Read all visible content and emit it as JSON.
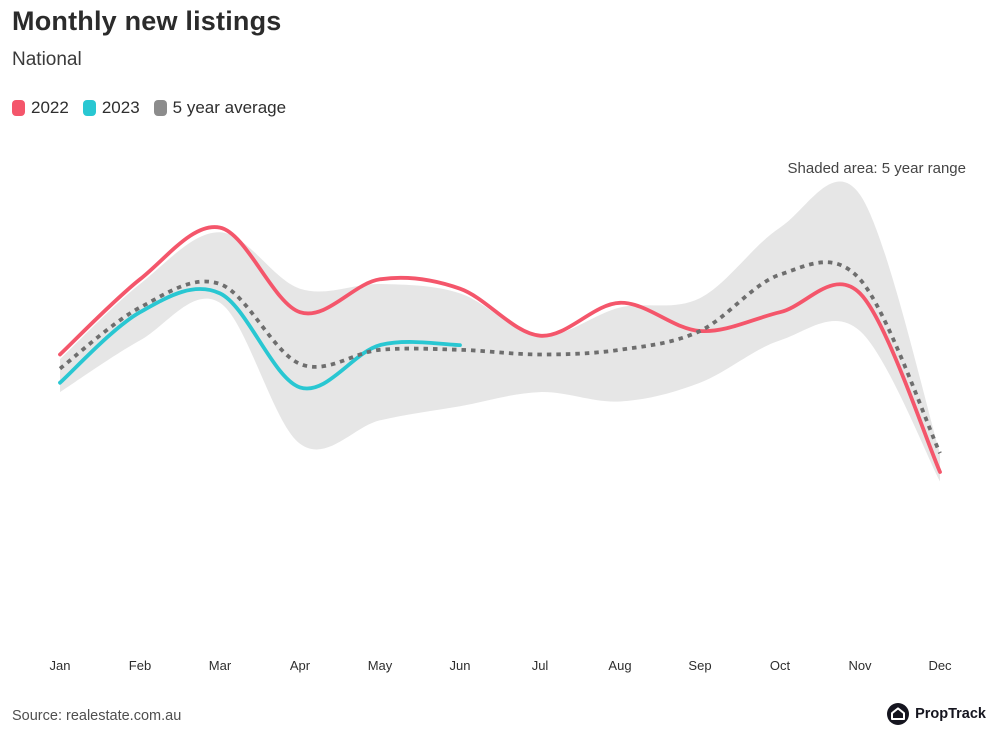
{
  "header": {
    "title": "Monthly new listings",
    "subtitle": "National"
  },
  "legend": [
    {
      "label": "2022",
      "color": "#f4566b"
    },
    {
      "label": "2023",
      "color": "#29c7d2"
    },
    {
      "label": "5 year average",
      "color": "#8c8c8c"
    }
  ],
  "annotation": "Shaded area: 5 year range",
  "footer": {
    "source": "Source: realestate.com.au",
    "brand": "PropTrack"
  },
  "colors": {
    "band_fill": "#e6e6e6",
    "series_2022": "#f4566b",
    "series_2023": "#29c7d2",
    "series_average": "#6e6e6e",
    "background": "#ffffff"
  },
  "chart_data": {
    "type": "line",
    "title": "Monthly new listings",
    "subtitle": "National",
    "xlabel": "",
    "ylabel": "",
    "grid": false,
    "legend_position": "top-left",
    "unit": "relative listings index (no y-axis shown; values estimated on 0-100 scale of plot height)",
    "categories": [
      "Jan",
      "Feb",
      "Mar",
      "Apr",
      "May",
      "Jun",
      "Jul",
      "Aug",
      "Sep",
      "Oct",
      "Nov",
      "Dec"
    ],
    "series": [
      {
        "name": "2022",
        "color": "#f4566b",
        "style": "solid",
        "values": [
          65,
          81,
          92,
          74,
          81,
          79,
          69,
          76,
          70,
          74,
          78,
          40
        ]
      },
      {
        "name": "2023",
        "color": "#29c7d2",
        "style": "solid",
        "values": [
          59,
          74,
          78,
          58,
          67,
          67,
          null,
          null,
          null,
          null,
          null,
          null
        ]
      },
      {
        "name": "5 year average",
        "color": "#6e6e6e",
        "style": "dotted",
        "values": [
          62,
          75,
          80,
          63,
          66,
          66,
          65,
          66,
          70,
          82,
          81,
          44
        ]
      }
    ],
    "band": {
      "name": "5 year range",
      "color": "#e6e6e6",
      "upper": [
        64,
        80,
        91,
        79,
        80,
        78,
        69,
        75,
        77,
        92,
        99,
        44
      ],
      "lower": [
        57,
        68,
        76,
        46,
        51,
        54,
        57,
        55,
        59,
        68,
        70,
        38
      ]
    }
  }
}
